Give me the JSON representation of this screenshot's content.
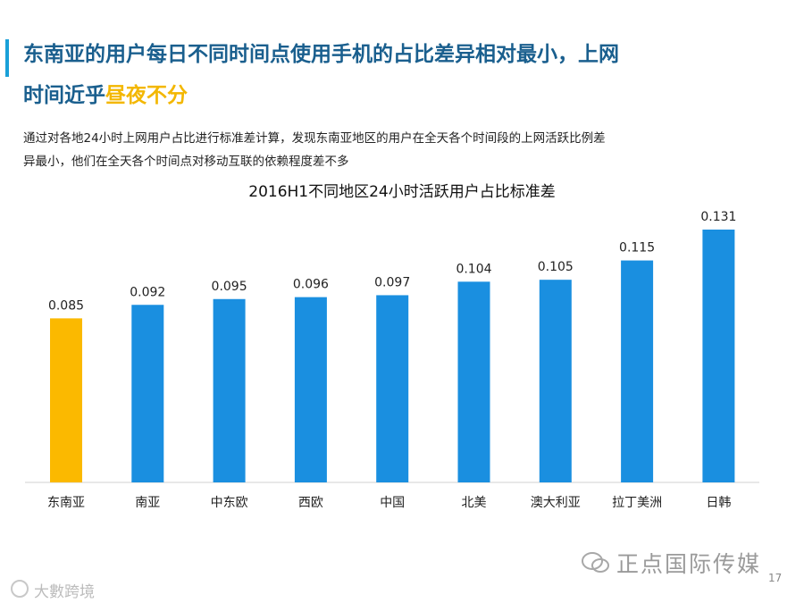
{
  "slide": {
    "title_main": "东南亚的用户每日不同时间点使用手机的占比差异相对最小，上网时间近乎",
    "title_highlight": "昼夜不分",
    "subtitle": "通过对各地24小时上网用户占比进行标准差计算，发现东南亚地区的用户在全天各个时间段的上网活跃比例差异最小，他们在全天各个时间点对移动互联的依赖程度差不多",
    "page_number": "17"
  },
  "watermarks": {
    "bottom_right": "正点国际传媒",
    "bottom_left": "大數跨境",
    "bottom_right_icon": "wechat-icon",
    "bottom_left_icon": "logo-icon"
  },
  "colors": {
    "accent": "#19a0d8",
    "title": "#1a5f8e",
    "highlight": "#f3b700",
    "bar_default": "#1a8fe0",
    "bar_highlight": "#fbb900"
  },
  "chart_data": {
    "type": "bar",
    "title": "2016H1不同地区24小时活跃用户占比标准差",
    "categories": [
      "东南亚",
      "南亚",
      "中东欧",
      "西欧",
      "中国",
      "北美",
      "澳大利亚",
      "拉丁美洲",
      "日韩"
    ],
    "values": [
      0.085,
      0.092,
      0.095,
      0.096,
      0.097,
      0.104,
      0.105,
      0.115,
      0.131
    ],
    "value_labels": [
      "0.085",
      "0.092",
      "0.095",
      "0.096",
      "0.097",
      "0.104",
      "0.105",
      "0.115",
      "0.131"
    ],
    "highlight_index": 0,
    "ylim": [
      0,
      0.131
    ],
    "xlabel": "",
    "ylabel": "",
    "grid": false,
    "legend": false
  }
}
